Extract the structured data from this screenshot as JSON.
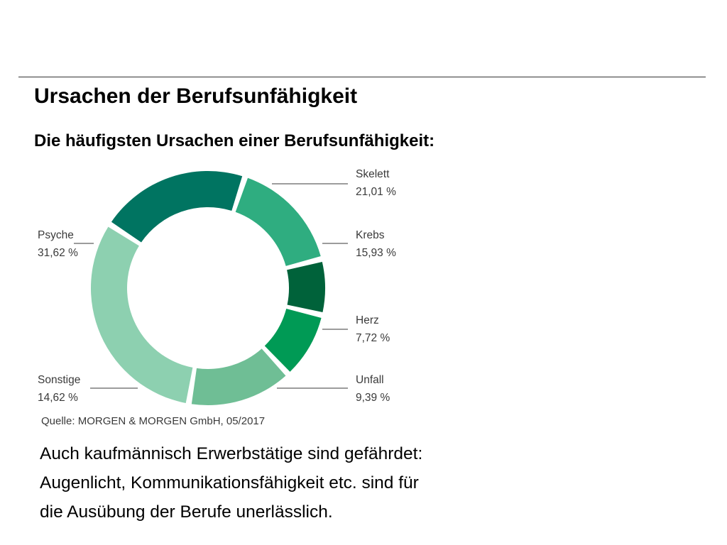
{
  "slide": {
    "title": "Ursachen der Berufsunfähigkeit",
    "subtitle": "Die häufigsten Ursachen einer Berufsunfähigkeit:",
    "source": "Quelle: MORGEN & MORGEN GmbH, 05/2017",
    "body_lines": [
      "Auch kaufmännisch Erwerbstätige sind gefährdet:",
      "Augenlicht, Kommunikationsfähigkeit etc. sind für",
      "die Ausübung der Berufe unerlässlich."
    ]
  },
  "chart_data": {
    "type": "pie",
    "variant": "donut",
    "title": "",
    "categories": [
      "Skelett",
      "Krebs",
      "Herz",
      "Unfall",
      "Sonstige",
      "Psyche"
    ],
    "values": [
      21.01,
      15.93,
      7.72,
      9.39,
      14.62,
      31.62
    ],
    "value_labels": [
      "21,01 %",
      "15,93 %",
      "7,72 %",
      "9,39 %",
      "14,62 %",
      "31,62 %"
    ],
    "colors": [
      "#007461",
      "#2fad80",
      "#00623a",
      "#009a55",
      "#6fbe95",
      "#8dd0b0"
    ],
    "legend": "none",
    "direct_labels": true
  }
}
